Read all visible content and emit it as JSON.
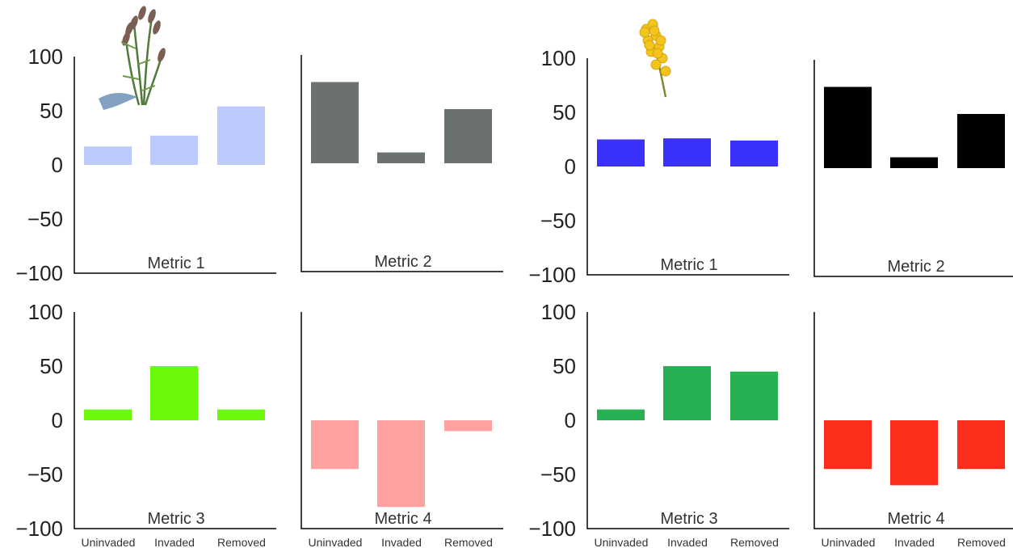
{
  "chart_data": [
    {
      "type": "bar",
      "group": "left",
      "label": "Metric 1",
      "ylim": [
        -100,
        100
      ],
      "yticks": [
        "100",
        "50",
        "0",
        "−50",
        "−100"
      ],
      "categories": [
        "Uninvaded",
        "Invaded",
        "Removed"
      ],
      "values": [
        17,
        27,
        54
      ],
      "color": "#bccbfb",
      "icon": "grass-plant-icon"
    },
    {
      "type": "bar",
      "group": "left",
      "label": "Metric 2",
      "ylim": [
        -100,
        100
      ],
      "categories": [
        "Uninvaded",
        "Invaded",
        "Removed"
      ],
      "values": [
        75,
        10,
        50
      ],
      "color": "#6b716f"
    },
    {
      "type": "bar",
      "group": "left",
      "label": "Metric 3",
      "ylim": [
        -100,
        100
      ],
      "yticks": [
        "100",
        "50",
        "0",
        "−50",
        "−100"
      ],
      "categories": [
        "Uninvaded",
        "Invaded",
        "Removed"
      ],
      "values": [
        10,
        50,
        10
      ],
      "color": "#6bf80a",
      "category_labels": [
        "Uninvaded",
        "Invaded",
        "Removed"
      ]
    },
    {
      "type": "bar",
      "group": "left",
      "label": "Metric 4",
      "ylim": [
        -100,
        100
      ],
      "categories": [
        "Uninvaded",
        "Invaded",
        "Removed"
      ],
      "values": [
        -45,
        -80,
        -10
      ],
      "color": "#ffa1a1",
      "category_labels": [
        "Uninvaded",
        "Invaded",
        "Removed"
      ]
    },
    {
      "type": "bar",
      "group": "right",
      "label": "Metric 1",
      "ylim": [
        -100,
        100
      ],
      "yticks": [
        "100",
        "50",
        "0",
        "−50",
        "−100"
      ],
      "categories": [
        "Uninvaded",
        "Invaded",
        "Removed"
      ],
      "values": [
        25,
        26,
        24
      ],
      "color": "#3a32fb",
      "icon": "yellow-flower-icon"
    },
    {
      "type": "bar",
      "group": "right",
      "label": "Metric 2",
      "ylim": [
        -100,
        100
      ],
      "categories": [
        "Uninvaded",
        "Invaded",
        "Removed"
      ],
      "values": [
        75,
        10,
        50
      ],
      "color": "#000000"
    },
    {
      "type": "bar",
      "group": "right",
      "label": "Metric 3",
      "ylim": [
        -100,
        100
      ],
      "yticks": [
        "100",
        "50",
        "0",
        "−50",
        "−100"
      ],
      "categories": [
        "Uninvaded",
        "Invaded",
        "Removed"
      ],
      "values": [
        10,
        50,
        45
      ],
      "color": "#27b153",
      "category_labels": [
        "Uninvaded",
        "Invaded",
        "Removed"
      ]
    },
    {
      "type": "bar",
      "group": "right",
      "label": "Metric 4",
      "ylim": [
        -100,
        100
      ],
      "categories": [
        "Uninvaded",
        "Invaded",
        "Removed"
      ],
      "values": [
        -45,
        -60,
        -45
      ],
      "color": "#fe2e1d",
      "category_labels": [
        "Uninvaded",
        "Invaded",
        "Removed"
      ]
    }
  ]
}
